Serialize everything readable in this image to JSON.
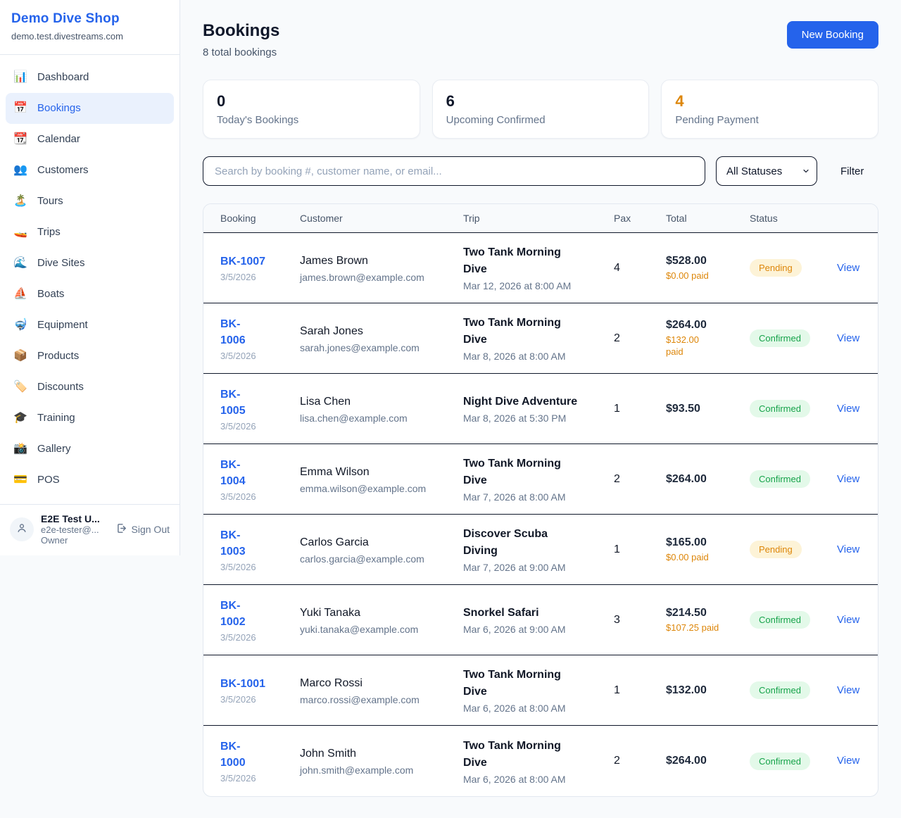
{
  "colors": {
    "accent": "#2563eb",
    "orange": "#dd8609",
    "green": "#16a34a"
  },
  "sidebar": {
    "brand": {
      "name": "Demo Dive Shop",
      "domain": "demo.test.divestreams.com"
    },
    "items": [
      {
        "slug": "dashboard",
        "label": "Dashboard",
        "icon": "📊",
        "active": false
      },
      {
        "slug": "bookings",
        "label": "Bookings",
        "icon": "📅",
        "active": true
      },
      {
        "slug": "calendar",
        "label": "Calendar",
        "icon": "📆",
        "active": false
      },
      {
        "slug": "customers",
        "label": "Customers",
        "icon": "👥",
        "active": false
      },
      {
        "slug": "tours",
        "label": "Tours",
        "icon": "🏝️",
        "active": false
      },
      {
        "slug": "trips",
        "label": "Trips",
        "icon": "🚤",
        "active": false
      },
      {
        "slug": "dive-sites",
        "label": "Dive Sites",
        "icon": "🌊",
        "active": false
      },
      {
        "slug": "boats",
        "label": "Boats",
        "icon": "⛵",
        "active": false
      },
      {
        "slug": "equipment",
        "label": "Equipment",
        "icon": "🤿",
        "active": false
      },
      {
        "slug": "products",
        "label": "Products",
        "icon": "📦",
        "active": false
      },
      {
        "slug": "discounts",
        "label": "Discounts",
        "icon": "🏷️",
        "active": false
      },
      {
        "slug": "training",
        "label": "Training",
        "icon": "🎓",
        "active": false
      },
      {
        "slug": "gallery",
        "label": "Gallery",
        "icon": "📸",
        "active": false
      },
      {
        "slug": "pos",
        "label": "POS",
        "icon": "💳",
        "active": false
      }
    ],
    "user": {
      "name": "E2E Test U...",
      "email": "e2e-tester@...",
      "role": "Owner",
      "sign_out_label": "Sign Out"
    }
  },
  "header": {
    "title": "Bookings",
    "subtitle": "8 total bookings",
    "new_booking_label": "New Booking"
  },
  "stats": [
    {
      "value": "0",
      "label": "Today's Bookings",
      "warn": false
    },
    {
      "value": "6",
      "label": "Upcoming Confirmed",
      "warn": false
    },
    {
      "value": "4",
      "label": "Pending Payment",
      "warn": true
    }
  ],
  "filters": {
    "search_placeholder": "Search by booking #, customer name, or email...",
    "status_selected": "All Statuses",
    "filter_label": "Filter"
  },
  "table": {
    "columns": [
      "Booking",
      "Customer",
      "Trip",
      "Pax",
      "Total",
      "Status"
    ],
    "view_label": "View",
    "rows": [
      {
        "id_lines": [
          "BK-1007"
        ],
        "date": "3/5/2026",
        "customer": "James Brown",
        "email": "james.brown@example.com",
        "trip_lines": [
          "Two Tank Morning",
          "Dive"
        ],
        "trip_datetime": "Mar 12, 2026 at 8:00 AM",
        "pax": "4",
        "total": "$528.00",
        "paid_lines": [
          "$0.00 paid"
        ],
        "status": "Pending"
      },
      {
        "id_lines": [
          "BK-",
          "1006"
        ],
        "date": "3/5/2026",
        "customer": "Sarah Jones",
        "email": "sarah.jones@example.com",
        "trip_lines": [
          "Two Tank Morning",
          "Dive"
        ],
        "trip_datetime": "Mar 8, 2026 at 8:00 AM",
        "pax": "2",
        "total": "$264.00",
        "paid_lines": [
          "$132.00",
          "paid"
        ],
        "status": "Confirmed"
      },
      {
        "id_lines": [
          "BK-",
          "1005"
        ],
        "date": "3/5/2026",
        "customer": "Lisa Chen",
        "email": "lisa.chen@example.com",
        "trip_lines": [
          "Night Dive Adventure"
        ],
        "trip_datetime": "Mar 8, 2026 at 5:30 PM",
        "pax": "1",
        "total": "$93.50",
        "paid_lines": [],
        "status": "Confirmed"
      },
      {
        "id_lines": [
          "BK-",
          "1004"
        ],
        "date": "3/5/2026",
        "customer": "Emma Wilson",
        "email": "emma.wilson@example.com",
        "trip_lines": [
          "Two Tank Morning",
          "Dive"
        ],
        "trip_datetime": "Mar 7, 2026 at 8:00 AM",
        "pax": "2",
        "total": "$264.00",
        "paid_lines": [],
        "status": "Confirmed"
      },
      {
        "id_lines": [
          "BK-",
          "1003"
        ],
        "date": "3/5/2026",
        "customer": "Carlos Garcia",
        "email": "carlos.garcia@example.com",
        "trip_lines": [
          "Discover Scuba",
          "Diving"
        ],
        "trip_datetime": "Mar 7, 2026 at 9:00 AM",
        "pax": "1",
        "total": "$165.00",
        "paid_lines": [
          "$0.00 paid"
        ],
        "status": "Pending"
      },
      {
        "id_lines": [
          "BK-",
          "1002"
        ],
        "date": "3/5/2026",
        "customer": "Yuki Tanaka",
        "email": "yuki.tanaka@example.com",
        "trip_lines": [
          "Snorkel Safari"
        ],
        "trip_datetime": "Mar 6, 2026 at 9:00 AM",
        "pax": "3",
        "total": "$214.50",
        "paid_lines": [
          "$107.25 paid"
        ],
        "status": "Confirmed"
      },
      {
        "id_lines": [
          "BK-1001"
        ],
        "date": "3/5/2026",
        "customer": "Marco Rossi",
        "email": "marco.rossi@example.com",
        "trip_lines": [
          "Two Tank Morning",
          "Dive"
        ],
        "trip_datetime": "Mar 6, 2026 at 8:00 AM",
        "pax": "1",
        "total": "$132.00",
        "paid_lines": [],
        "status": "Confirmed"
      },
      {
        "id_lines": [
          "BK-",
          "1000"
        ],
        "date": "3/5/2026",
        "customer": "John Smith",
        "email": "john.smith@example.com",
        "trip_lines": [
          "Two Tank Morning",
          "Dive"
        ],
        "trip_datetime": "Mar 6, 2026 at 8:00 AM",
        "pax": "2",
        "total": "$264.00",
        "paid_lines": [],
        "status": "Confirmed"
      }
    ]
  }
}
